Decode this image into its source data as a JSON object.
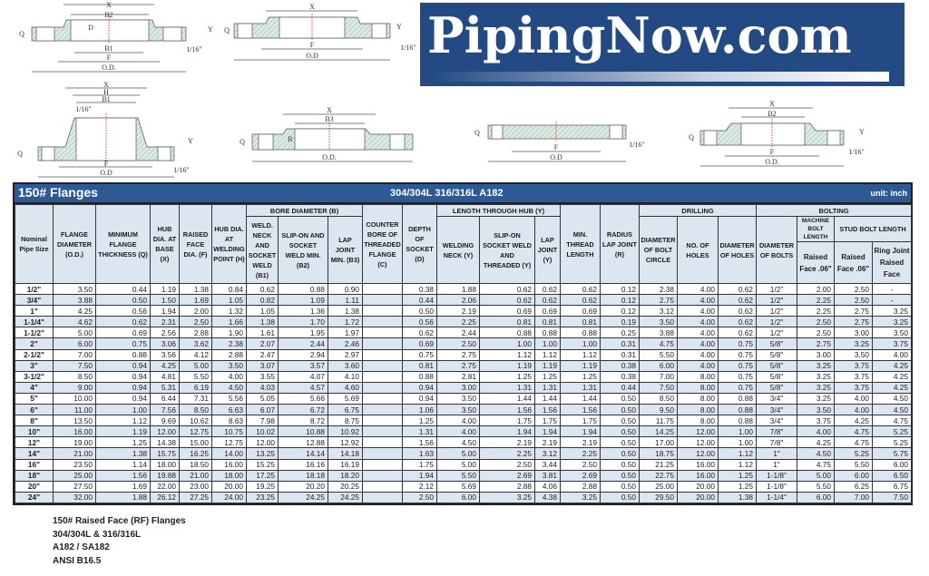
{
  "logo": {
    "text": "PipingNow.com",
    "bg_color": "#234a83"
  },
  "drawings": {
    "socket_weld": {
      "x": "X",
      "b2": "B2",
      "d": "D",
      "b1": "B1",
      "f": "F",
      "od": "O.D.",
      "q": "Q",
      "y": "Y",
      "gap": "1/16\""
    },
    "threaded": {
      "x": "X",
      "f": "F",
      "od": "O.D",
      "q": "Q",
      "y": "Y",
      "gap": "1/16\""
    },
    "weld_neck": {
      "x": "X",
      "h": "H",
      "b1": "B1",
      "gap_top": "1/16\"",
      "f": "F",
      "od": "O.D",
      "q": "Q",
      "y": "Y",
      "gap": "1/16\""
    },
    "lap_joint": {
      "x": "X",
      "b3": "B3",
      "od": "O.D.",
      "q": "Q",
      "r": "R"
    },
    "blind": {
      "f": "F",
      "od": "O.D",
      "q": "Q",
      "gap": "1/16\""
    },
    "slip_on": {
      "x": "X",
      "b2": "B2",
      "f": "F",
      "od": "O.D.",
      "q": "Q",
      "y": "Y",
      "gap": "1/16\""
    }
  },
  "table": {
    "title": "150# Flanges",
    "materials": "304/304L  316/316L  A182",
    "unit": "unit: inch",
    "groups": {
      "bore": "BORE DIAMETER (B)",
      "hub_length": "LENGTH THROUGH HUB (Y)",
      "drilling": "DRILLING",
      "bolting": "BOLTING",
      "machine_bolt": "MACHINE BOLT LENGTH",
      "stud_bolt": "STUD BOLT LENGTH"
    },
    "headers": {
      "nps": "Nominal Pipe Size",
      "od": "FLANGE DIAMETER (O.D.)",
      "q": "MINIMUM FLANGE THICKNESS (Q)",
      "x": "HUB DIA. AT BASE (X)",
      "f": "RAISED FACE DIA. (F)",
      "h": "HUB DIA. AT WELDING POINT (H)",
      "b1": "WELD. NECK AND SOCKET WELD (B1)",
      "b2": "SLIP-ON AND SOCKET WELD MIN. (B2)",
      "b3": "LAP JOINT MIN. (B3)",
      "c": "COUNTER BORE OF THREADED FLANGE (C)",
      "d": "DEPTH OF SOCKET (D)",
      "y_wn": "WELDING NECK (Y)",
      "y_so": "SLIP-ON SOCKET WELD AND THREADED (Y)",
      "y_lap": "LAP JOINT (Y)",
      "thread": "MIN. THREAD LENGTH",
      "r": "RADIUS LAP JOINT (R)",
      "bc": "DIAMETER OF BOLT CIRCLE",
      "holes": "NO. OF HOLES",
      "hole_dia": "DIAMETER OF HOLES",
      "bolt_dia": "DIAMETER OF BOLTS",
      "mb_rf": "Raised Face .06\"",
      "sb_rf": "Raised Face .06\"",
      "sb_rj": "Ring Joint Raised Face"
    },
    "rows": [
      [
        "1/2\"",
        "3.50",
        "0.44",
        "1.19",
        "1.38",
        "0.84",
        "0.62",
        "0.88",
        "0.90",
        "",
        "0.38",
        "1.88",
        "0.62",
        "0.62",
        "0.62",
        "0.12",
        "2.38",
        "4.00",
        "0.62",
        "1/2\"",
        "2.00",
        "2.50",
        "-"
      ],
      [
        "3/4\"",
        "3.88",
        "0.50",
        "1.50",
        "1.69",
        "1.05",
        "0.82",
        "1.09",
        "1.11",
        "",
        "0.44",
        "2.06",
        "0.62",
        "0.62",
        "0.62",
        "0.12",
        "2.75",
        "4.00",
        "0.62",
        "1/2\"",
        "2.25",
        "2.50",
        "-"
      ],
      [
        "1\"",
        "4.25",
        "0.56",
        "1.94",
        "2.00",
        "1.32",
        "1.05",
        "1.36",
        "1.38",
        "",
        "0.50",
        "2.19",
        "0.69",
        "0.69",
        "0.69",
        "0.12",
        "3.12",
        "4.00",
        "0.62",
        "1/2\"",
        "2.25",
        "2.75",
        "3.25"
      ],
      [
        "1-1/4\"",
        "4.62",
        "0.62",
        "2.31",
        "2.50",
        "1.66",
        "1.38",
        "1.70",
        "1.72",
        "",
        "0.56",
        "2.25",
        "0.81",
        "0.81",
        "0.81",
        "0.19",
        "3.50",
        "4.00",
        "0.62",
        "1/2\"",
        "2.50",
        "2.75",
        "3.25"
      ],
      [
        "1-1/2\"",
        "5.00",
        "0.69",
        "2.56",
        "2.88",
        "1.90",
        "1.61",
        "1.95",
        "1.97",
        "",
        "0.62",
        "2.44",
        "0.88",
        "0.88",
        "0.88",
        "0.25",
        "3.88",
        "4.00",
        "0.62",
        "1/2\"",
        "2.50",
        "3.00",
        "3.50"
      ],
      [
        "2\"",
        "6.00",
        "0.75",
        "3.06",
        "3.62",
        "2.38",
        "2.07",
        "2.44",
        "2.46",
        "",
        "0.69",
        "2.50",
        "1.00",
        "1.00",
        "1.00",
        "0.31",
        "4.75",
        "4.00",
        "0.75",
        "5/8\"",
        "2.75",
        "3.25",
        "3.75"
      ],
      [
        "2-1/2\"",
        "7.00",
        "0.88",
        "3.56",
        "4.12",
        "2.88",
        "2.47",
        "2.94",
        "2.97",
        "",
        "0.75",
        "2.75",
        "1.12",
        "1.12",
        "1.12",
        "0.31",
        "5.50",
        "4.00",
        "0.75",
        "5/8\"",
        "3.00",
        "3.50",
        "4.00"
      ],
      [
        "3\"",
        "7.50",
        "0.94",
        "4.25",
        "5.00",
        "3.50",
        "3.07",
        "3.57",
        "3.60",
        "",
        "0.81",
        "2.75",
        "1.19",
        "1.19",
        "1.19",
        "0.38",
        "6.00",
        "4.00",
        "0.75",
        "5/8\"",
        "3.25",
        "3.75",
        "4.25"
      ],
      [
        "3-1/2\"",
        "8.50",
        "0.94",
        "4.81",
        "5.50",
        "4.00",
        "3.55",
        "4.07",
        "4.10",
        "",
        "0.88",
        "2.81",
        "1.25",
        "1.25",
        "1.25",
        "0.38",
        "7.00",
        "8.00",
        "0.75",
        "5/8\"",
        "3.25",
        "3.75",
        "4.25"
      ],
      [
        "4\"",
        "9.00",
        "0.94",
        "5.31",
        "6.19",
        "4.50",
        "4.03",
        "4.57",
        "4.60",
        "",
        "0.94",
        "3.00",
        "1.31",
        "1.31",
        "1.31",
        "0.44",
        "7.50",
        "8.00",
        "0.75",
        "5/8\"",
        "3.25",
        "3.75",
        "4.25"
      ],
      [
        "5\"",
        "10.00",
        "0.94",
        "6.44",
        "7.31",
        "5.56",
        "5.05",
        "5.66",
        "5.69",
        "",
        "0.94",
        "3.50",
        "1.44",
        "1.44",
        "1.44",
        "0.50",
        "8.50",
        "8.00",
        "0.88",
        "3/4\"",
        "3.25",
        "4.00",
        "4.50"
      ],
      [
        "6\"",
        "11.00",
        "1.00",
        "7.56",
        "8.50",
        "6.63",
        "6.07",
        "6.72",
        "6.75",
        "",
        "1.06",
        "3.50",
        "1.56",
        "1.56",
        "1.56",
        "0.50",
        "9.50",
        "8.00",
        "0.88",
        "3/4\"",
        "3.50",
        "4.00",
        "4.50"
      ],
      [
        "8\"",
        "13.50",
        "1.12",
        "9.69",
        "10.62",
        "8.63",
        "7.98",
        "8.72",
        "8.75",
        "",
        "1.25",
        "4.00",
        "1.75",
        "1.75",
        "1.75",
        "0.50",
        "11.75",
        "8.00",
        "0.88",
        "3/4\"",
        "3.75",
        "4.25",
        "4.75"
      ],
      [
        "10\"",
        "16.00",
        "1.19",
        "12.00",
        "12.75",
        "10.75",
        "10.02",
        "10.88",
        "10.92",
        "",
        "1.31",
        "4.00",
        "1.94",
        "1.94",
        "1.94",
        "0.50",
        "14.25",
        "12.00",
        "1.00",
        "7/8\"",
        "4.00",
        "4.75",
        "5.25"
      ],
      [
        "12\"",
        "19.00",
        "1.25",
        "14.38",
        "15.00",
        "12.75",
        "12.00",
        "12.88",
        "12.92",
        "",
        "1.56",
        "4.50",
        "2.19",
        "2.19",
        "2.19",
        "0.50",
        "17.00",
        "12.00",
        "1.00",
        "7/8\"",
        "4.25",
        "4.75",
        "5.25"
      ],
      [
        "14\"",
        "21.00",
        "1.38",
        "15.75",
        "16.25",
        "14.00",
        "13.25",
        "14.14",
        "14.18",
        "",
        "1.63",
        "5.00",
        "2.25",
        "3.12",
        "2.25",
        "0.50",
        "18.75",
        "12.00",
        "1.12",
        "1\"",
        "4.50",
        "5.25",
        "5.75"
      ],
      [
        "16\"",
        "23.50",
        "1.14",
        "18.00",
        "18.50",
        "16.00",
        "15.25",
        "16.16",
        "16.19",
        "",
        "1.75",
        "5.00",
        "2.50",
        "3.44",
        "2.50",
        "0.50",
        "21.25",
        "16.00",
        "1.12",
        "1\"",
        "4.75",
        "5.50",
        "6.00"
      ],
      [
        "18\"",
        "25.00",
        "1.56",
        "19.88",
        "21.00",
        "18.00",
        "17.25",
        "18.18",
        "18.20",
        "",
        "1.94",
        "5.50",
        "2.69",
        "3.81",
        "2.69",
        "0.50",
        "22.75",
        "16.00",
        "1.25",
        "1-1/8\"",
        "5.00",
        "6.00",
        "6.50"
      ],
      [
        "20\"",
        "27.50",
        "1.69",
        "22.00",
        "23.00",
        "20.00",
        "19.25",
        "20.20",
        "20.25",
        "",
        "2.12",
        "5.69",
        "2.88",
        "4.06",
        "2.88",
        "0.50",
        "25.00",
        "20.00",
        "1.25",
        "1-1/8\"",
        "5.50",
        "6.25",
        "6.75"
      ],
      [
        "24\"",
        "32.00",
        "1.88",
        "26.12",
        "27.25",
        "24.00",
        "23.25",
        "24.25",
        "24.25",
        "",
        "2.50",
        "6.00",
        "3.25",
        "4.38",
        "3.25",
        "0.50",
        "29.50",
        "20.00",
        "1.38",
        "1-1/4\"",
        "6.00",
        "7.00",
        "7.50"
      ]
    ],
    "colors": {
      "title_bar": "#2d5a96",
      "header_bg": "#dce6f1",
      "alt_row": "#dce6f1"
    }
  },
  "footer": {
    "lines": [
      "150# Raised Face (RF) Flanges",
      "304/304L & 316/316L",
      "A182 / SA182",
      "ANSI B16.5"
    ]
  }
}
